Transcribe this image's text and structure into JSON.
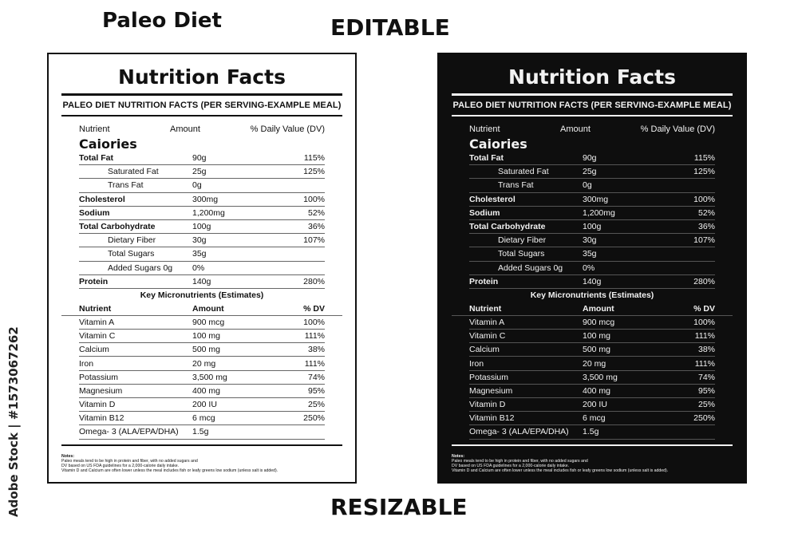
{
  "headings": {
    "left": "Paleo Diet",
    "center": "EDITABLE",
    "bottom": "RESIZABLE"
  },
  "side_credit": "Adobe Stock | #1573067262",
  "label": {
    "title": "Nutrition Facts",
    "subtitle": "PALEO DIET NUTRITION FACTS (PER SERVING-EXAMPLE MEAL)",
    "columns": {
      "nutrient": "Nutrient",
      "amount": "Amount",
      "dv": "% Daily Value (DV)"
    },
    "calories": "Caiories",
    "main_rows": [
      {
        "name": "Total Fat",
        "amount": "90g",
        "dv": "115%",
        "style": "bold"
      },
      {
        "name": "Saturated Fat",
        "amount": "25g",
        "dv": "125%",
        "style": "indent"
      },
      {
        "name": "Trans Fat",
        "amount": "0g",
        "dv": "",
        "style": "indent"
      },
      {
        "name": "Cholesterol",
        "amount": "300mg",
        "dv": "100%",
        "style": "bold"
      },
      {
        "name": "Sodium",
        "amount": "1,200mg",
        "dv": "52%",
        "style": "bold"
      },
      {
        "name": "Total Carbohydrate",
        "amount": "100g",
        "dv": "36%",
        "style": "bold"
      },
      {
        "name": "Dietary Fiber",
        "amount": "30g",
        "dv": "107%",
        "style": "indent"
      },
      {
        "name": "Total Sugars",
        "amount": "35g",
        "dv": "",
        "style": "indent"
      },
      {
        "name": "Added Sugars 0g",
        "amount": "0%",
        "dv": "",
        "style": "indent"
      },
      {
        "name": "Protein",
        "amount": "140g",
        "dv": "280%",
        "style": "bold"
      }
    ],
    "micro_title": "Key Micronutrients (Estimates)",
    "micro_columns": {
      "nutrient": "Nutrient",
      "amount": "Amount",
      "dv": "% DV"
    },
    "micro_rows": [
      {
        "name": "Vitamin A",
        "amount": "900 mcg",
        "dv": "100%"
      },
      {
        "name": "Vitamin C",
        "amount": "100 mg",
        "dv": "111%"
      },
      {
        "name": "Calcium",
        "amount": "500 mg",
        "dv": "38%"
      },
      {
        "name": "Iron",
        "amount": "20 mg",
        "dv": "111%"
      },
      {
        "name": "Potassium",
        "amount": "3,500 mg",
        "dv": "74%"
      },
      {
        "name": "Magnesium",
        "amount": "400 mg",
        "dv": "95%"
      },
      {
        "name": "Vitamin D",
        "amount": "200 IU",
        "dv": "25%"
      },
      {
        "name": "Vitamin B12",
        "amount": "6 mcg",
        "dv": "250%"
      },
      {
        "name": "Omega- 3 (ALA/EPA/DHA)",
        "amount": "1.5g",
        "dv": ""
      }
    ],
    "notes_title": "Notes:",
    "notes": [
      "Paleo meals tend to be high in protein and fiber, with no added sugars and",
      "DV based on US FDA guidelines for a 2,000-calorie daily intake.",
      "Vitamin D and Calcium are often lower unless the meal includes fish or leafy greens low sodium (unless salt is added)."
    ]
  },
  "colors": {
    "light_bg": "#ffffff",
    "dark_bg": "#0e0e0e",
    "ink": "#111111",
    "light_ink": "#f2f2f2"
  }
}
